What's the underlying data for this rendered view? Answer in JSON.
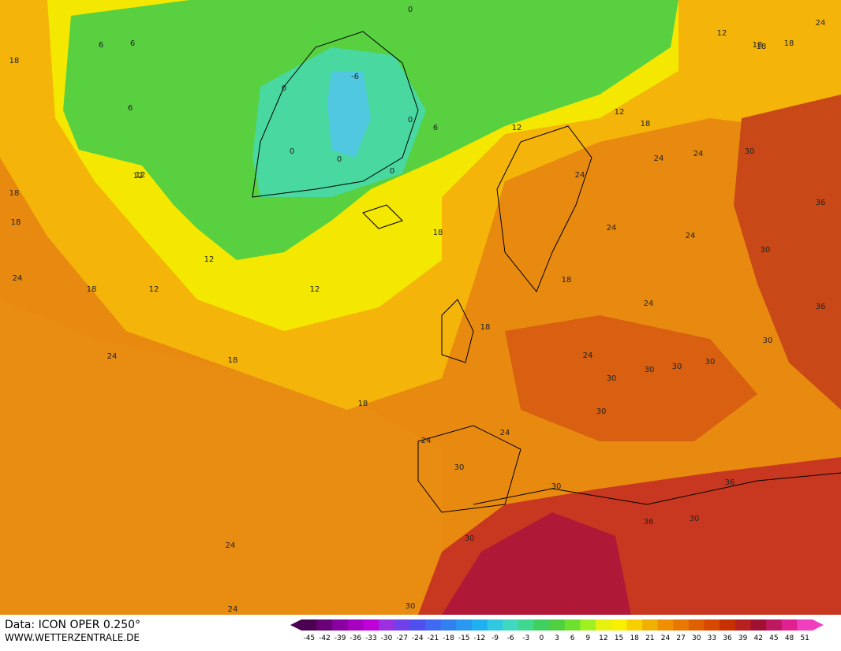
{
  "footer": {
    "source": "Data: ICON OPER 0.250°",
    "site": "WWW.WETTERZENTRALE.DE"
  },
  "legend": {
    "ticks": [
      -45,
      -42,
      -39,
      -36,
      -33,
      -30,
      -27,
      -24,
      -21,
      -18,
      -15,
      -12,
      -9,
      -6,
      -3,
      0,
      3,
      6,
      9,
      12,
      15,
      18,
      21,
      24,
      27,
      30,
      33,
      36,
      39,
      42,
      45,
      48,
      51
    ],
    "colors": [
      "#4b0050",
      "#6a0078",
      "#8a00a0",
      "#a800c0",
      "#c000d8",
      "#9a30e0",
      "#7040e8",
      "#5050f0",
      "#4068f0",
      "#3080f0",
      "#2898f0",
      "#20b0f0",
      "#30c8e0",
      "#40d8c0",
      "#40d890",
      "#40d060",
      "#50d040",
      "#70e030",
      "#a0f020",
      "#e8f010",
      "#f8f000",
      "#f8d000",
      "#f0b000",
      "#f09000",
      "#e87800",
      "#e06000",
      "#d84800",
      "#c83000",
      "#b82020",
      "#a01030",
      "#c01860",
      "#e02090",
      "#f040c0"
    ]
  },
  "contour_labels": [
    18,
    6,
    6,
    6,
    0,
    -6,
    0,
    0,
    0,
    0,
    0,
    6,
    12,
    18,
    18,
    12,
    12,
    18,
    18,
    24,
    24,
    12,
    12,
    18,
    12,
    18,
    24,
    24,
    24,
    24,
    30,
    30,
    24,
    18,
    18,
    24,
    24,
    30,
    30,
    30,
    30,
    30,
    30,
    36,
    36,
    30,
    30,
    24,
    24,
    18,
    24,
    24,
    18,
    30,
    36,
    30,
    30,
    36,
    24,
    12,
    12,
    18,
    18
  ]
}
